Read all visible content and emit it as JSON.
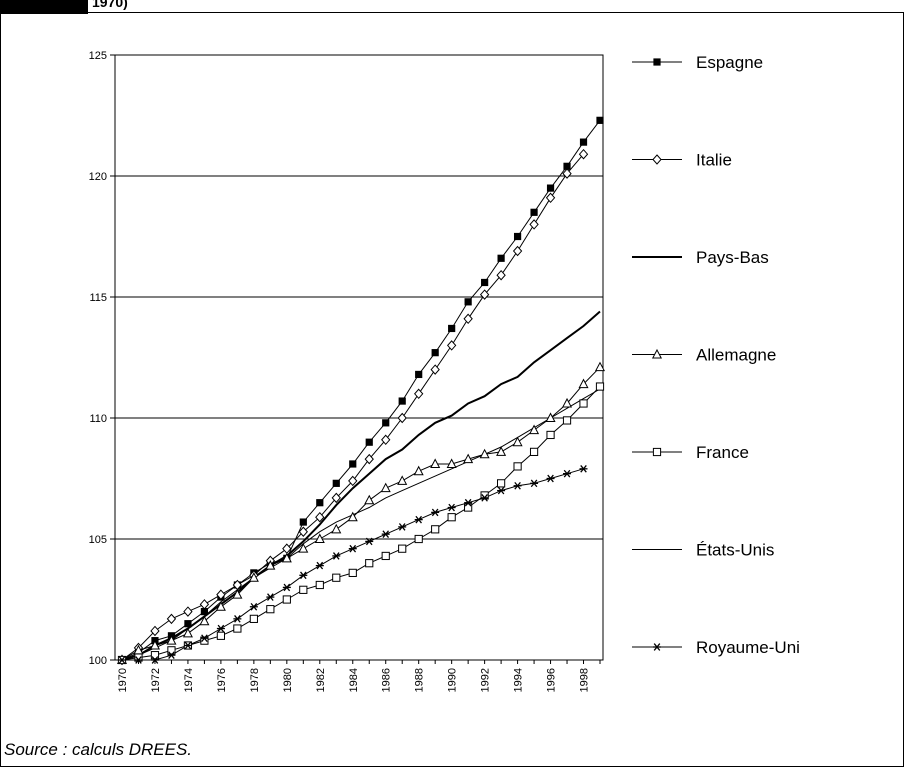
{
  "header": {
    "fragment": "1970)"
  },
  "source_note": "Source : calculs DREES.",
  "chart_data": {
    "type": "line",
    "title": "",
    "xlabel": "",
    "ylabel": "",
    "x": [
      1970,
      1971,
      1972,
      1973,
      1974,
      1975,
      1976,
      1977,
      1978,
      1979,
      1980,
      1981,
      1982,
      1983,
      1984,
      1985,
      1986,
      1987,
      1988,
      1989,
      1990,
      1991,
      1992,
      1993,
      1994,
      1995,
      1996,
      1997,
      1998,
      1999
    ],
    "x_tick_labels": [
      "1970",
      "1972",
      "1974",
      "1976",
      "1978",
      "1980",
      "1982",
      "1984",
      "1986",
      "1988",
      "1990",
      "1992",
      "1994",
      "1996",
      "1998"
    ],
    "ylim": [
      100,
      125
    ],
    "y_ticks": [
      100,
      105,
      110,
      115,
      120,
      125
    ],
    "grid": "horizontal",
    "legend_position": "right",
    "series": [
      {
        "name": "Espagne",
        "marker": "filled-square",
        "values": [
          100,
          100.3,
          100.8,
          101,
          101.5,
          102,
          102.6,
          103.1,
          103.6,
          104,
          104.2,
          105.7,
          106.5,
          107.3,
          108.1,
          109,
          109.8,
          110.7,
          111.8,
          112.7,
          113.7,
          114.8,
          115.6,
          116.6,
          117.5,
          118.5,
          119.5,
          120.4,
          121.4,
          122.3
        ]
      },
      {
        "name": "Italie",
        "marker": "open-diamond",
        "values": [
          100,
          100.5,
          101.2,
          101.7,
          102,
          102.3,
          102.7,
          103.1,
          103.5,
          104.1,
          104.6,
          105.3,
          105.9,
          106.7,
          107.4,
          108.3,
          109.1,
          110,
          111,
          112,
          113,
          114.1,
          115.1,
          115.9,
          116.9,
          118,
          119.1,
          120.1,
          120.9,
          null
        ]
      },
      {
        "name": "Pays-Bas",
        "marker": "none",
        "stroke_width": 2,
        "values": [
          100,
          100.2,
          100.6,
          100.9,
          101.3,
          101.8,
          102.3,
          102.8,
          103.4,
          103.9,
          104.3,
          104.9,
          105.6,
          106.4,
          107.1,
          107.7,
          108.3,
          108.7,
          109.3,
          109.8,
          110.1,
          110.6,
          110.9,
          111.4,
          111.7,
          112.3,
          112.8,
          113.3,
          113.8,
          114.4
        ]
      },
      {
        "name": "Allemagne",
        "marker": "open-triangle",
        "values": [
          100,
          100.4,
          100.6,
          100.8,
          101.1,
          101.6,
          102.2,
          102.7,
          103.4,
          103.9,
          104.2,
          104.6,
          105,
          105.4,
          105.9,
          106.6,
          107.1,
          107.4,
          107.8,
          108.1,
          108.1,
          108.3,
          108.5,
          108.6,
          109,
          109.5,
          110,
          110.6,
          111.4,
          112.1
        ]
      },
      {
        "name": "France",
        "marker": "open-square",
        "values": [
          100,
          100.1,
          100.2,
          100.4,
          100.6,
          100.8,
          101,
          101.3,
          101.7,
          102.1,
          102.5,
          102.9,
          103.1,
          103.4,
          103.6,
          104,
          104.3,
          104.6,
          105,
          105.4,
          105.9,
          106.3,
          106.8,
          107.3,
          108,
          108.6,
          109.3,
          109.9,
          110.6,
          111.3
        ]
      },
      {
        "name": "États-Unis",
        "marker": "none",
        "stroke_width": 1,
        "values": [
          100,
          100.2,
          100.5,
          100.8,
          101.3,
          101.8,
          102.4,
          102.9,
          103.4,
          103.8,
          104.2,
          104.8,
          105.3,
          105.7,
          106,
          106.3,
          106.7,
          107,
          107.3,
          107.6,
          107.9,
          108.2,
          108.5,
          108.8,
          109.2,
          109.6,
          110,
          110.4,
          110.8,
          111.2
        ]
      },
      {
        "name": "Royaume-Uni",
        "marker": "asterisk",
        "values": [
          100,
          100,
          100,
          100.2,
          100.6,
          100.9,
          101.3,
          101.7,
          102.2,
          102.6,
          103,
          103.5,
          103.9,
          104.3,
          104.6,
          104.9,
          105.2,
          105.5,
          105.8,
          106.1,
          106.3,
          106.5,
          106.7,
          107,
          107.2,
          107.3,
          107.5,
          107.7,
          107.9,
          null
        ]
      }
    ]
  }
}
